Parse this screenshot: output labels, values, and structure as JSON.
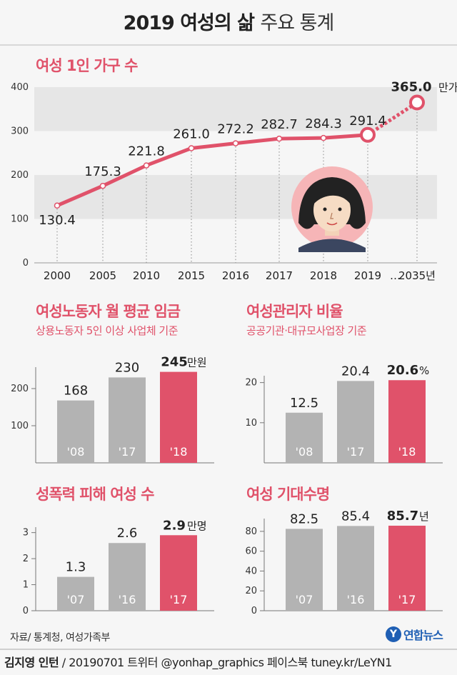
{
  "title": {
    "bold": "2019 여성의 삶",
    "light": "주요 통계"
  },
  "colors": {
    "accent": "#e0526a",
    "bar_gray": "#b3b3b3",
    "band": "#e6e6e6"
  },
  "source": "자료/ 통계청, 여성가족부",
  "credit": {
    "author": "김지영 인턴",
    "rest": "/ 20190701 트위터 @yonhap_graphics 페이스북 tuney.kr/LeYN1"
  },
  "logo": {
    "mark": "Y",
    "text": "연합뉴스"
  },
  "illustration": {
    "name": "woman-face-icon"
  },
  "sections": {
    "households": {
      "title": "여성 1인 가구 수"
    },
    "wage": {
      "title": "여성노동자 월 평균 임금",
      "subtitle": "상용노동자 5인 이상 사업체 기준"
    },
    "managers": {
      "title": "여성관리자 비율",
      "subtitle": "공공기관·대규모사업장 기준"
    },
    "violence": {
      "title": "성폭력 피해 여성 수"
    },
    "life": {
      "title": "여성 기대수명"
    }
  },
  "chart_data": [
    {
      "id": "households",
      "type": "line",
      "title": "여성 1인 가구 수",
      "x": [
        "2000",
        "2005",
        "2010",
        "2015",
        "2016",
        "2017",
        "2018",
        "2019",
        "2035년"
      ],
      "x_separator": "…",
      "values": [
        130.4,
        175.3,
        221.8,
        261.0,
        272.2,
        282.7,
        284.3,
        291.4,
        365.0
      ],
      "value_labels": [
        "130.4",
        "175.3",
        "221.8",
        "261.0",
        "272.2",
        "282.7",
        "284.3",
        "291.4",
        "365.0"
      ],
      "last_unit": "만가구",
      "projection_from_index": 7,
      "yticks": [
        "0",
        "100",
        "200",
        "300",
        "400"
      ],
      "ylim": [
        0,
        400
      ],
      "grid_bands": true
    },
    {
      "id": "wage",
      "type": "bar",
      "title": "여성노동자 월 평균 임금",
      "categories": [
        "'08",
        "'17",
        "'18"
      ],
      "values": [
        168,
        230,
        245
      ],
      "value_labels": [
        "168",
        "230",
        "245"
      ],
      "last_unit": "만원",
      "highlight_index": 2,
      "yticks": [
        "100",
        "200"
      ],
      "ytick_values": [
        100,
        200
      ],
      "ylim": [
        0,
        250
      ]
    },
    {
      "id": "managers",
      "type": "bar",
      "title": "여성관리자 비율",
      "categories": [
        "'08",
        "'17",
        "'18"
      ],
      "values": [
        12.5,
        20.4,
        20.6
      ],
      "value_labels": [
        "12.5",
        "20.4",
        "20.6"
      ],
      "last_unit": "%",
      "highlight_index": 2,
      "yticks": [
        "10",
        "20"
      ],
      "ytick_values": [
        10,
        20
      ],
      "ylim": [
        0,
        21
      ]
    },
    {
      "id": "violence",
      "type": "bar",
      "title": "성폭력 피해 여성 수",
      "categories": [
        "'07",
        "'16",
        "'17"
      ],
      "values": [
        1.3,
        2.6,
        2.9
      ],
      "value_labels": [
        "1.3",
        "2.6",
        "2.9"
      ],
      "last_unit": "만명",
      "highlight_index": 2,
      "yticks": [
        "0",
        "1",
        "2",
        "3"
      ],
      "ytick_values": [
        0,
        1,
        2,
        3
      ],
      "ylim": [
        0,
        3.1
      ]
    },
    {
      "id": "life",
      "type": "bar",
      "title": "여성 기대수명",
      "categories": [
        "'07",
        "'16",
        "'17"
      ],
      "values": [
        82.5,
        85.4,
        85.7
      ],
      "value_labels": [
        "82.5",
        "85.4",
        "85.7"
      ],
      "last_unit": "년",
      "highlight_index": 2,
      "yticks": [
        "0",
        "20",
        "40",
        "60",
        "80"
      ],
      "ytick_values": [
        0,
        20,
        40,
        60,
        80
      ],
      "ylim": [
        0,
        90
      ]
    }
  ]
}
